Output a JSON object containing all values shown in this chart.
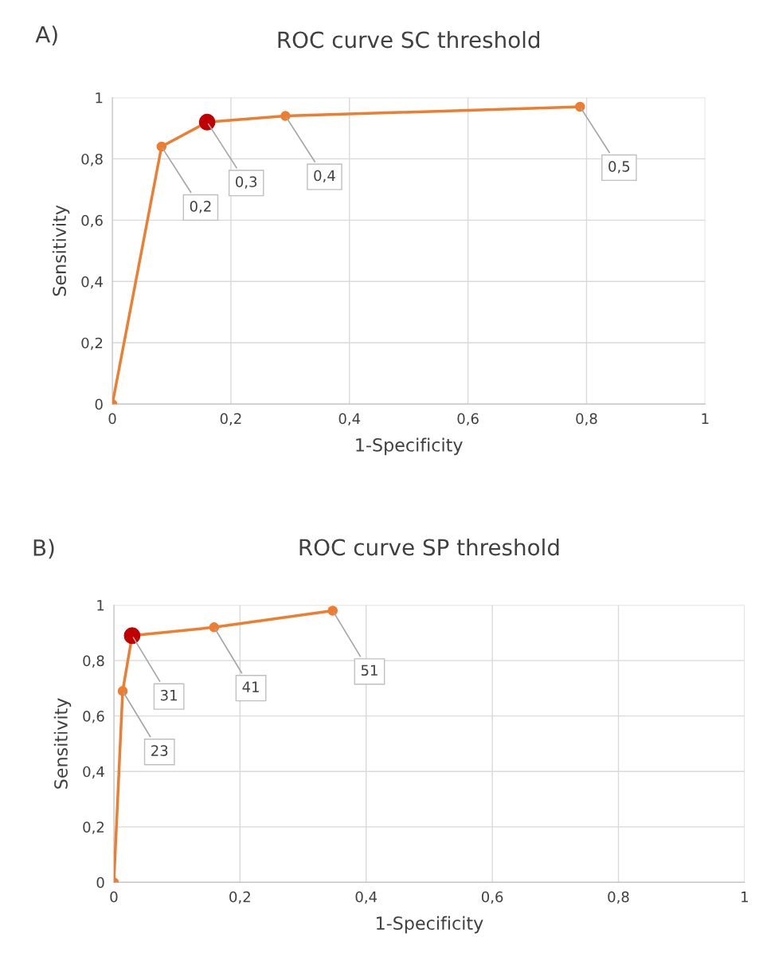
{
  "chart_data": [
    {
      "type": "line",
      "title": "ROC curve SC threshold",
      "xlabel": "1-Specificity",
      "ylabel": "Sensitivity",
      "x": [
        0,
        0.083,
        0.16,
        0.292,
        0.789
      ],
      "series": [
        {
          "color": "#ed7d31",
          "colors": [
            "#ed7d31",
            "#ed7d31",
            "#c00000",
            "#ed7d31",
            "#ed7d31"
          ],
          "values": [
            0,
            0.84,
            0.92,
            0.94,
            0.97
          ]
        }
      ],
      "marker": "circle",
      "line_style": "solid",
      "xlim": [
        0,
        1
      ],
      "ylim": [
        0,
        1
      ],
      "xticks": [
        0,
        {
          "value": 0.2,
          "label": "0,2"
        },
        {
          "value": 0.4,
          "label": "0,4"
        },
        {
          "value": 0.6,
          "label": "0,6"
        },
        {
          "value": 0.8,
          "label": "0,8"
        },
        1
      ],
      "yticks": [
        0,
        {
          "value": 0.2,
          "label": "0,2"
        },
        {
          "value": 0.4,
          "label": "0,4"
        },
        {
          "value": 0.6,
          "label": "0,6"
        },
        {
          "value": 0.8,
          "label": "0,8"
        },
        1
      ],
      "grid": true,
      "legend": false,
      "annotations": [
        "A)",
        {
          "text": "0,2",
          "x": 0.083,
          "y": 0.84
        },
        {
          "text": "0,3",
          "x": 0.16,
          "y": 0.92
        },
        {
          "text": "0,4",
          "x": 0.292,
          "y": 0.94
        },
        {
          "text": "0,5",
          "x": 0.789,
          "y": 0.97
        }
      ]
    },
    {
      "type": "line",
      "title": "ROC curve SP threshold",
      "xlabel": "1-Specificity",
      "ylabel": "Sensitivity",
      "x": [
        0,
        0.014,
        0.029,
        0.159,
        0.347
      ],
      "series": [
        {
          "color": "#ed7d31",
          "colors": [
            "#ed7d31",
            "#ed7d31",
            "#c00000",
            "#ed7d31",
            "#ed7d31"
          ],
          "values": [
            0,
            0.69,
            0.89,
            0.92,
            0.98
          ]
        }
      ],
      "marker": "circle",
      "line_style": "solid",
      "xlim": [
        0,
        1
      ],
      "ylim": [
        0,
        1
      ],
      "xticks": [
        0,
        {
          "value": 0.2,
          "label": "0,2"
        },
        {
          "value": 0.4,
          "label": "0,4"
        },
        {
          "value": 0.6,
          "label": "0,6"
        },
        {
          "value": 0.8,
          "label": "0,8"
        },
        1
      ],
      "yticks": [
        0,
        {
          "value": 0.2,
          "label": "0,2"
        },
        {
          "value": 0.4,
          "label": "0,4"
        },
        {
          "value": 0.6,
          "label": "0,6"
        },
        {
          "value": 0.8,
          "label": "0,8"
        },
        1
      ],
      "grid": true,
      "legend": false,
      "annotations": [
        "B)",
        {
          "text": "23",
          "x": 0.014,
          "y": 0.69
        },
        {
          "text": "31",
          "x": 0.029,
          "y": 0.89
        },
        {
          "text": "41",
          "x": 0.159,
          "y": 0.92
        },
        {
          "text": "51",
          "x": 0.347,
          "y": 0.98
        }
      ]
    }
  ]
}
